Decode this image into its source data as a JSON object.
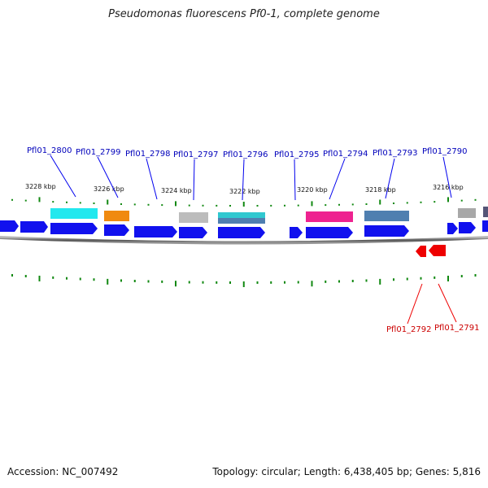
{
  "title": "Pseudomonas fluorescens Pf0-1, complete genome",
  "footer": {
    "accession": "Accession: NC_007492",
    "summary": "Topology: circular; Length: 6,438,405 bp; Genes: 5,816"
  },
  "colors": {
    "forward_gene": "#1010ee",
    "reverse_gene": "#ee0000",
    "label_forward": "#0000bb",
    "label_reverse": "#cc0000",
    "tick": "#118811",
    "backbone": "#666666"
  },
  "kbp_labels": [
    "3228 kbp",
    "3226 kbp",
    "3224 kbp",
    "3222 kbp",
    "3220 kbp",
    "3218 kbp",
    "3216 kbp"
  ],
  "forward_genes": [
    "Pfl01_2800",
    "Pfl01_2799",
    "Pfl01_2798",
    "Pfl01_2797",
    "Pfl01_2796",
    "Pfl01_2795",
    "Pfl01_2794",
    "Pfl01_2793",
    "Pfl01_2790"
  ],
  "reverse_genes": [
    "Pfl01_2792",
    "Pfl01_2791"
  ],
  "domain_colors": [
    "#22e0e6",
    "#f08a10",
    "#b8b8b8",
    "#30c0d0",
    "#ee2290",
    "#4f7fb0",
    "#a8a8a8",
    "#555577"
  ]
}
